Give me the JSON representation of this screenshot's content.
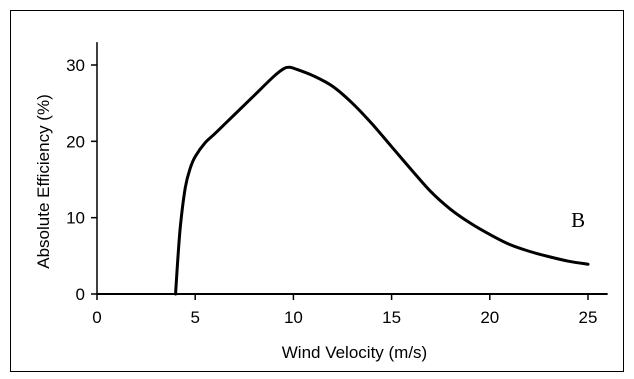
{
  "chart_data": {
    "type": "line",
    "title": "",
    "xlabel": "Wind Velocity (m/s)",
    "ylabel": "Absolute Efficiency (%)",
    "xlim": [
      0,
      26
    ],
    "ylim": [
      0,
      33
    ],
    "x_ticks": [
      0,
      5,
      10,
      15,
      20,
      25
    ],
    "y_ticks": [
      0,
      10,
      20,
      30
    ],
    "grid": false,
    "legend": "none",
    "line_color": "#000000",
    "series": [
      {
        "x": [
          4.0,
          4.1,
          4.25,
          4.5,
          4.75,
          5.0,
          5.5,
          6.0,
          7.0,
          8.0,
          9.0,
          9.5,
          9.8,
          10.2,
          11.0,
          12.0,
          13.0,
          14.0,
          15.0,
          16.0,
          17.0,
          18.0,
          19.0,
          20.0,
          21.0,
          22.0,
          23.0,
          24.0,
          25.0
        ],
        "y": [
          0.0,
          4.0,
          9.0,
          14.0,
          16.5,
          18.0,
          19.8,
          21.0,
          23.5,
          26.0,
          28.5,
          29.5,
          29.7,
          29.4,
          28.6,
          27.2,
          25.0,
          22.3,
          19.3,
          16.3,
          13.4,
          11.1,
          9.3,
          7.8,
          6.5,
          5.6,
          4.9,
          4.3,
          3.9
        ]
      }
    ],
    "annotations": [
      {
        "text": "B",
        "x": 24.5,
        "y": 8.8
      }
    ]
  }
}
